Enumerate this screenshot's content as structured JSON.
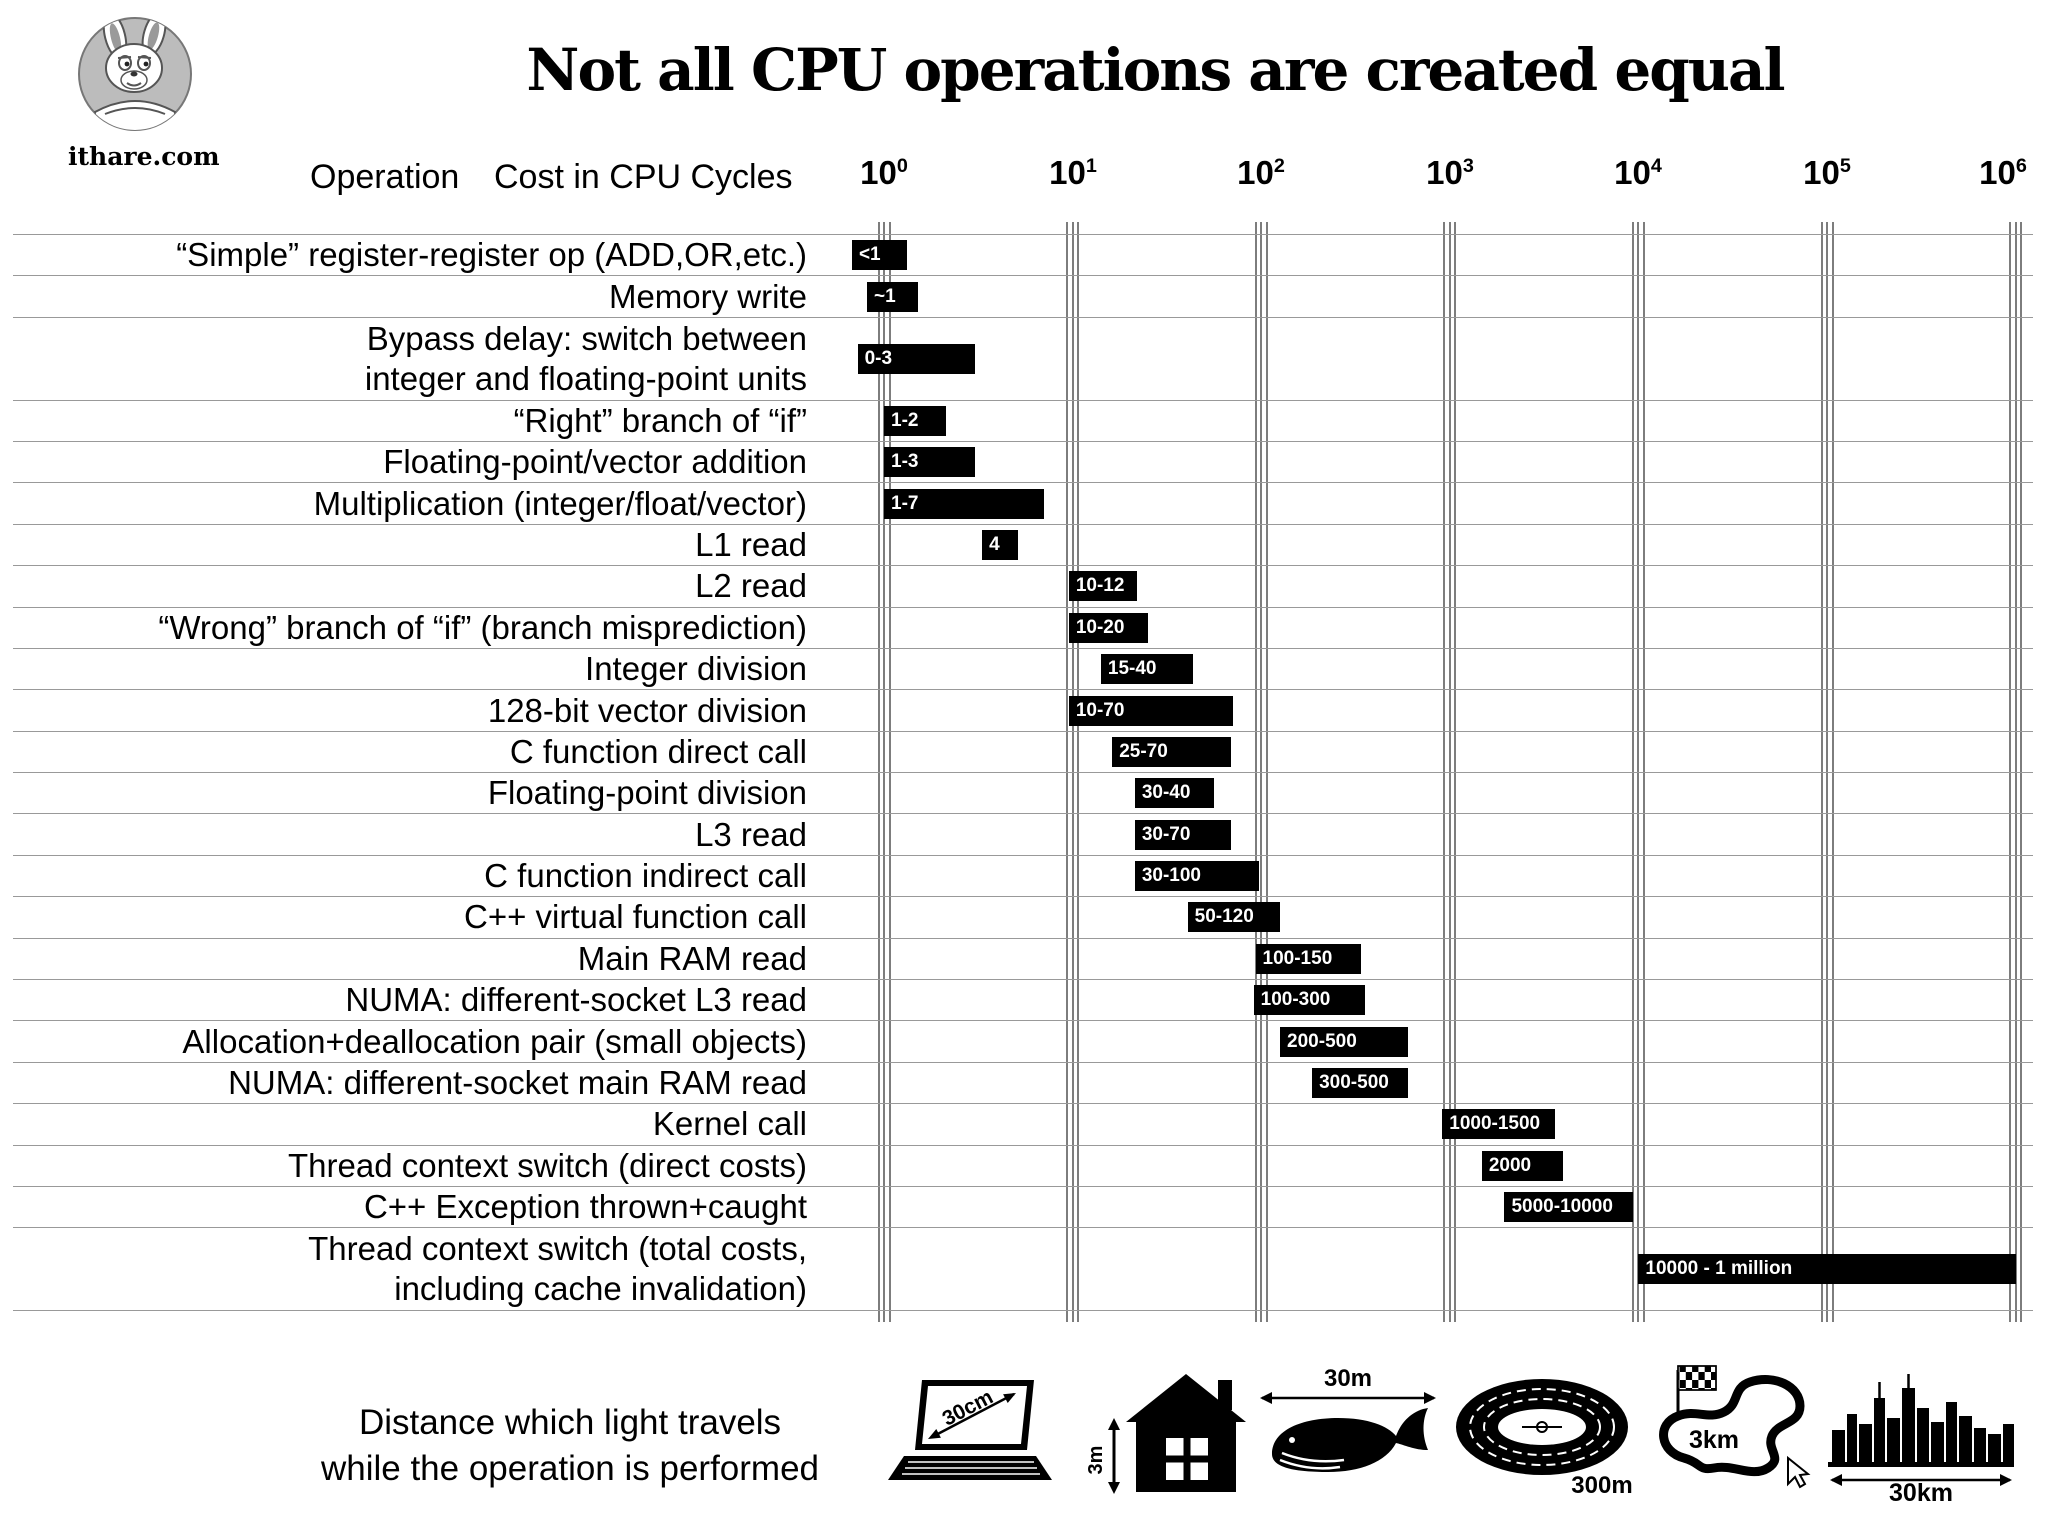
{
  "logo": {
    "site_label": "ithare.com"
  },
  "title": "Not all CPU operations are created equal",
  "header": {
    "operation_label": "Operation",
    "cost_label": "Cost in CPU Cycles"
  },
  "scale": {
    "base": "10",
    "exponents": [
      "0",
      "1",
      "2",
      "3",
      "4",
      "5",
      "6"
    ]
  },
  "chart_data": {
    "type": "bar",
    "orientation": "horizontal",
    "x_scale": "log10",
    "x_unit": "CPU cycles",
    "x_ticks": [
      1,
      10,
      100,
      1000,
      10000,
      100000,
      1000000
    ],
    "rows": [
      {
        "label": "“Simple” register-register op (ADD,OR,etc.)",
        "value": "<1",
        "exp": [
          -0.17,
          0.12
        ]
      },
      {
        "label": "Memory write",
        "value": "~1",
        "exp": [
          -0.09,
          0.18
        ]
      },
      {
        "label": "Bypass delay: switch between",
        "label2": "integer and floating-point units",
        "value": "0-3",
        "exp": [
          -0.14,
          0.48
        ]
      },
      {
        "label": "“Right” branch of “if”",
        "value": "1-2",
        "exp": [
          0,
          0.33
        ]
      },
      {
        "label": "Floating-point/vector addition",
        "value": "1-3",
        "exp": [
          0,
          0.48
        ]
      },
      {
        "label": "Multiplication (integer/float/vector)",
        "value": "1-7",
        "exp": [
          0,
          0.85
        ]
      },
      {
        "label": "L1 read",
        "value": "4",
        "exp": [
          0.52,
          0.71
        ]
      },
      {
        "label": "L2 read",
        "value": "10-12",
        "exp": [
          0.98,
          1.34
        ]
      },
      {
        "label": "“Wrong” branch of “if” (branch misprediction)",
        "value": "10-20",
        "exp": [
          0.98,
          1.4
        ]
      },
      {
        "label": "Integer division",
        "value": "15-40",
        "exp": [
          1.15,
          1.64
        ]
      },
      {
        "label": "128-bit vector division",
        "value": "10-70",
        "exp": [
          0.98,
          1.85
        ]
      },
      {
        "label": "C function direct call",
        "value": "25-70",
        "exp": [
          1.21,
          1.84
        ]
      },
      {
        "label": "Floating-point division",
        "value": "30-40",
        "exp": [
          1.33,
          1.75
        ]
      },
      {
        "label": "L3 read",
        "value": "30-70",
        "exp": [
          1.33,
          1.84
        ]
      },
      {
        "label": "C function indirect call",
        "value": "30-100",
        "exp": [
          1.33,
          1.99
        ]
      },
      {
        "label": "C++ virtual function call",
        "value": "50-120",
        "exp": [
          1.61,
          2.1
        ]
      },
      {
        "label": "Main RAM read",
        "value": "100-150",
        "exp": [
          1.97,
          2.53
        ]
      },
      {
        "label": "NUMA: different-socket L3 read",
        "value": "100-300",
        "exp": [
          1.96,
          2.55
        ]
      },
      {
        "label": "Allocation+deallocation pair (small objects)",
        "value": "200-500",
        "exp": [
          2.1,
          2.78
        ]
      },
      {
        "label": "NUMA: different-socket main RAM read",
        "value": "300-500",
        "exp": [
          2.27,
          2.78
        ]
      },
      {
        "label": "Kernel call",
        "value": "1000-1500",
        "exp": [
          2.96,
          3.56
        ]
      },
      {
        "label": "Thread context switch (direct costs)",
        "value": "2000",
        "exp": [
          3.17,
          3.6
        ]
      },
      {
        "label": "C++ Exception thrown+caught",
        "value": "5000-10000",
        "exp": [
          3.29,
          3.97
        ]
      },
      {
        "label": "Thread context switch (total costs,",
        "label2": "including cache invalidation)",
        "value": "10000 - 1 million",
        "exp": [
          4.0,
          6.0
        ]
      }
    ]
  },
  "footer": {
    "caption_line1": "Distance which light travels",
    "caption_line2": "while the operation is performed",
    "distances": [
      {
        "icon": "laptop-icon",
        "label": "30cm"
      },
      {
        "icon": "house-icon",
        "label": "3m"
      },
      {
        "icon": "whale-icon",
        "label": "30m"
      },
      {
        "icon": "stadium-icon",
        "label": "300m"
      },
      {
        "icon": "race-track-icon",
        "label": "3km"
      },
      {
        "icon": "city-skyline-icon",
        "label": "30km"
      }
    ]
  },
  "colors": {
    "bar": "#000000",
    "bar_text": "#ffffff",
    "grid": "#7d7d7d",
    "separator": "#999999",
    "background": "#ffffff"
  }
}
